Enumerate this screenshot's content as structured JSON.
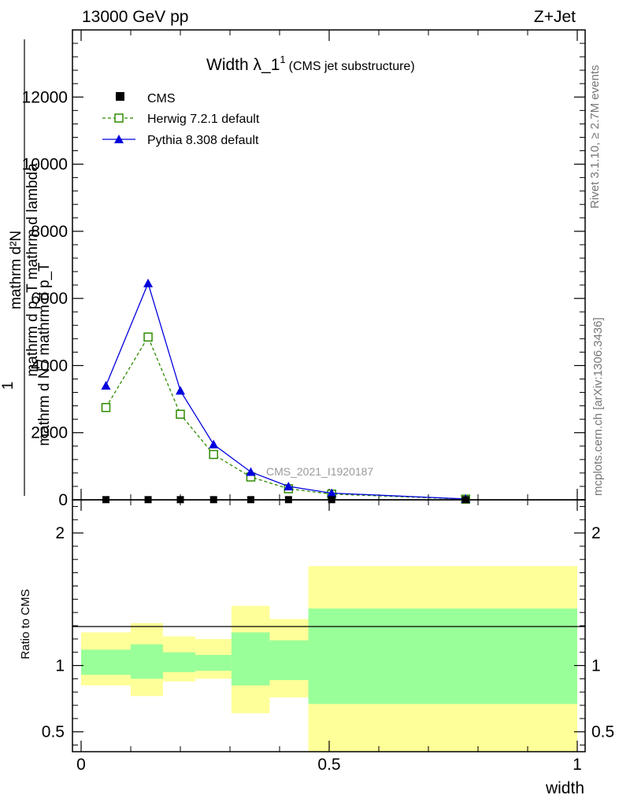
{
  "header": {
    "left": "13000 GeV pp",
    "right": "Z+Jet"
  },
  "side_text": {
    "rivet": "Rivet 3.1.10, ≥ 2.7M events",
    "mcplots": "mcplots.cern.ch [arXiv:1306.3436]"
  },
  "colors": {
    "cms": "#000000",
    "herwig": "#2e8b00",
    "pythia": "#0000dd",
    "band_outer": "#ffff99",
    "band_inner": "#99ff99",
    "watermark": "#999999"
  },
  "chart_data": [
    {
      "type": "line",
      "title": "Width λ_1",
      "title_sup": "1",
      "subtitle": "(CMS jet substructure)",
      "watermark": "CMS_2021_I1920187",
      "ylabel_lines": [
        "mathrm d²N",
        "mathrm d p_T mathrm d lambda",
        "1",
        "mathrm d N / mathrm d p_T"
      ],
      "ylim": [
        0,
        14000
      ],
      "yticks": [
        0,
        2000,
        4000,
        6000,
        8000,
        10000,
        12000
      ],
      "ytick_labels": [
        "0",
        "2000",
        "4000",
        "6000",
        "8000",
        "10000",
        "12000"
      ],
      "xlim": [
        0,
        1
      ],
      "legend_position": "top-left",
      "series": [
        {
          "name": "CMS",
          "marker": "filled-square",
          "x": [
            0.05,
            0.135,
            0.2,
            0.267,
            0.342,
            0.418,
            0.505,
            0.775
          ],
          "y": [
            5,
            5,
            5,
            5,
            5,
            5,
            5,
            5
          ]
        },
        {
          "name": "Herwig 7.2.1 default",
          "marker": "open-square",
          "style": "dashed",
          "x": [
            0.05,
            0.135,
            0.2,
            0.267,
            0.342,
            0.418,
            0.505,
            0.775
          ],
          "y": [
            2750,
            4850,
            2550,
            1350,
            680,
            330,
            170,
            20
          ]
        },
        {
          "name": "Pythia 8.308 default",
          "marker": "filled-triangle",
          "style": "solid",
          "x": [
            0.05,
            0.135,
            0.2,
            0.267,
            0.342,
            0.418,
            0.505,
            0.775
          ],
          "y": [
            3400,
            6450,
            3250,
            1650,
            830,
            400,
            200,
            25
          ]
        }
      ]
    },
    {
      "type": "area",
      "ylabel": "Ratio to CMS",
      "xlabel": "width",
      "xlim": [
        0,
        1
      ],
      "ylim": [
        0.35,
        2.25
      ],
      "xticks": [
        0,
        0.5,
        1
      ],
      "xtick_labels": [
        "0",
        "0.5",
        "1"
      ],
      "yticks": [
        0.5,
        1,
        2
      ],
      "ytick_labels": [
        "0.5",
        "1",
        "2"
      ],
      "reference": 1,
      "bins": [
        {
          "x0": 0.0,
          "x1": 0.1,
          "outer": [
            0.85,
            1.25
          ],
          "inner": [
            0.93,
            1.12
          ]
        },
        {
          "x0": 0.1,
          "x1": 0.165,
          "outer": [
            0.77,
            1.32
          ],
          "inner": [
            0.9,
            1.16
          ]
        },
        {
          "x0": 0.165,
          "x1": 0.23,
          "outer": [
            0.88,
            1.22
          ],
          "inner": [
            0.95,
            1.1
          ]
        },
        {
          "x0": 0.23,
          "x1": 0.303,
          "outer": [
            0.9,
            1.2
          ],
          "inner": [
            0.96,
            1.08
          ]
        },
        {
          "x0": 0.303,
          "x1": 0.38,
          "outer": [
            0.64,
            1.45
          ],
          "inner": [
            0.85,
            1.25
          ]
        },
        {
          "x0": 0.38,
          "x1": 0.458,
          "outer": [
            0.76,
            1.35
          ],
          "inner": [
            0.89,
            1.19
          ]
        },
        {
          "x0": 0.458,
          "x1": 1.0,
          "outer": [
            0.35,
            1.75
          ],
          "inner": [
            0.71,
            1.43
          ]
        }
      ]
    }
  ]
}
